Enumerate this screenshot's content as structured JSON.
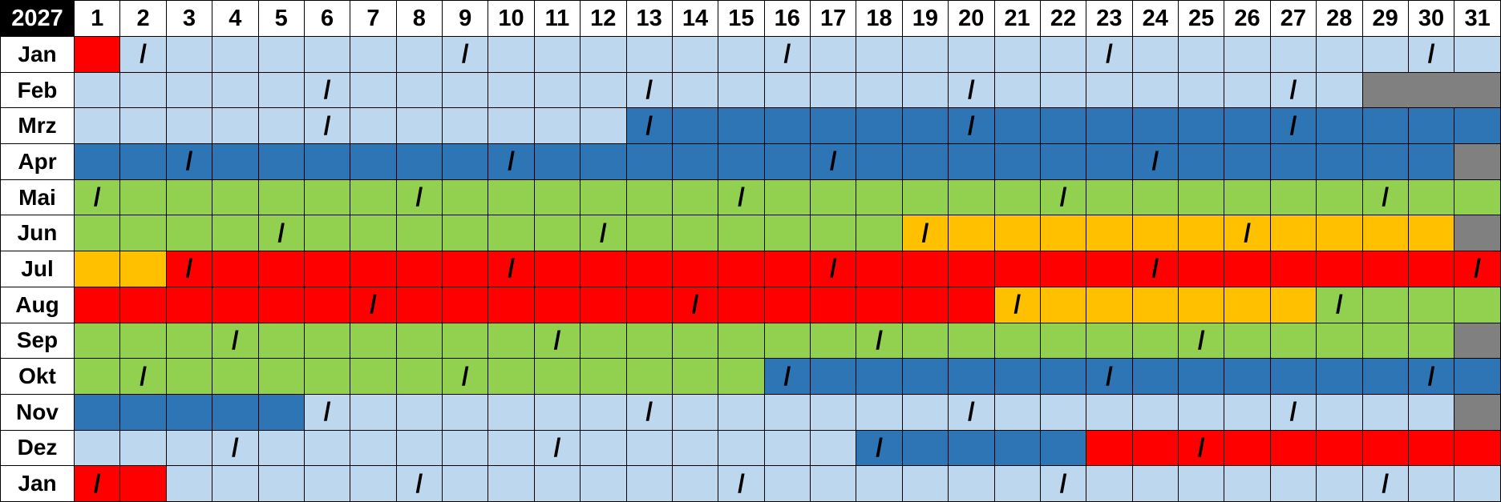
{
  "year": "2027",
  "days": [
    "1",
    "2",
    "3",
    "4",
    "5",
    "6",
    "7",
    "8",
    "9",
    "10",
    "11",
    "12",
    "13",
    "14",
    "15",
    "16",
    "17",
    "18",
    "19",
    "20",
    "21",
    "22",
    "23",
    "24",
    "25",
    "26",
    "27",
    "28",
    "29",
    "30",
    "31"
  ],
  "marker": "/",
  "colors": {
    "L": "#BDD7EE",
    "D": "#2E75B6",
    "G": "#92D050",
    "Y": "#FFC000",
    "R": "#FF0000",
    "X": "#808080"
  },
  "months": [
    {
      "label": "Jan",
      "runs": [
        [
          "R",
          1
        ],
        [
          "L",
          30
        ]
      ],
      "marked": [
        2,
        9,
        16,
        23,
        30
      ]
    },
    {
      "label": "Feb",
      "runs": [
        [
          "L",
          28
        ],
        [
          "X",
          3
        ]
      ],
      "marked": [
        6,
        13,
        20,
        27
      ]
    },
    {
      "label": "Mrz",
      "runs": [
        [
          "L",
          12
        ],
        [
          "D",
          19
        ]
      ],
      "marked": [
        6,
        13,
        20,
        27
      ]
    },
    {
      "label": "Apr",
      "runs": [
        [
          "D",
          30
        ],
        [
          "X",
          1
        ]
      ],
      "marked": [
        3,
        10,
        17,
        24
      ]
    },
    {
      "label": "Mai",
      "runs": [
        [
          "G",
          31
        ]
      ],
      "marked": [
        1,
        8,
        15,
        22,
        29
      ]
    },
    {
      "label": "Jun",
      "runs": [
        [
          "G",
          18
        ],
        [
          "Y",
          12
        ],
        [
          "X",
          1
        ]
      ],
      "marked": [
        5,
        12,
        19,
        26
      ]
    },
    {
      "label": "Jul",
      "runs": [
        [
          "Y",
          2
        ],
        [
          "R",
          29
        ]
      ],
      "marked": [
        3,
        10,
        17,
        24,
        31
      ]
    },
    {
      "label": "Aug",
      "runs": [
        [
          "R",
          20
        ],
        [
          "Y",
          7
        ],
        [
          "G",
          4
        ]
      ],
      "marked": [
        7,
        14,
        21,
        28
      ]
    },
    {
      "label": "Sep",
      "runs": [
        [
          "G",
          30
        ],
        [
          "X",
          1
        ]
      ],
      "marked": [
        4,
        11,
        18,
        25
      ]
    },
    {
      "label": "Okt",
      "runs": [
        [
          "G",
          15
        ],
        [
          "D",
          16
        ]
      ],
      "marked": [
        2,
        9,
        16,
        23,
        30
      ]
    },
    {
      "label": "Nov",
      "runs": [
        [
          "D",
          5
        ],
        [
          "L",
          25
        ],
        [
          "X",
          1
        ]
      ],
      "marked": [
        6,
        13,
        20,
        27
      ]
    },
    {
      "label": "Dez",
      "runs": [
        [
          "L",
          17
        ],
        [
          "D",
          5
        ],
        [
          "R",
          9
        ]
      ],
      "marked": [
        4,
        11,
        18,
        25
      ]
    },
    {
      "label": "Jan",
      "runs": [
        [
          "R",
          2
        ],
        [
          "L",
          29
        ]
      ],
      "marked": [
        1,
        8,
        15,
        22,
        29
      ]
    }
  ]
}
